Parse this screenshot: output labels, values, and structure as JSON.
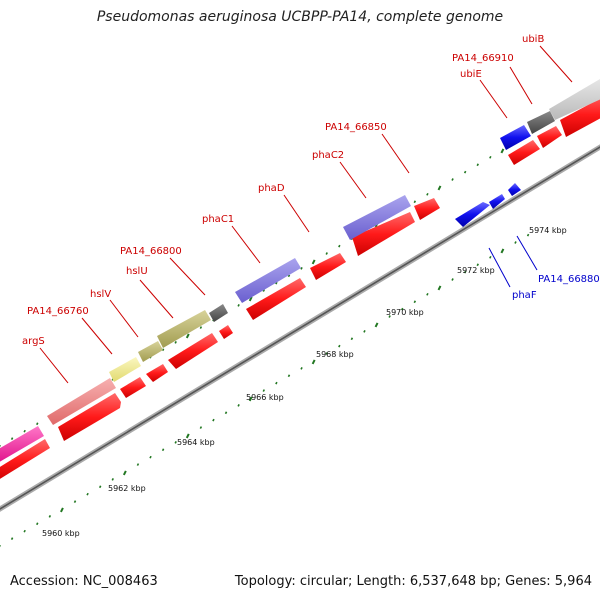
{
  "title": "Pseudomonas aeruginosa UCBPP-PA14, complete genome",
  "footer": {
    "accession": "Accession: NC_008463",
    "info": "Topology: circular; Length: 6,537,648 bp; Genes: 5,964"
  },
  "kbp_labels": [
    "5960 kbp",
    "5962 kbp",
    "5964 kbp",
    "5966 kbp",
    "5968 kbp",
    "5970 kbp",
    "5972 kbp",
    "5974 kbp"
  ],
  "gene_labels_upper": [
    "argS",
    "PA14_66760",
    "hslV",
    "hslU",
    "PA14_66800",
    "phaC1",
    "phaD",
    "phaC2",
    "PA14_66850",
    "ubiE",
    "PA14_66910",
    "ubiB"
  ],
  "gene_labels_lower": [
    "phaF",
    "PA14_66880"
  ],
  "colors": {
    "forward_gene": "#ff0000",
    "reverse_gene": "#0000ee",
    "forward_label": "#cc0000",
    "reverse_label": "#0000cc",
    "tick": "#227722"
  }
}
